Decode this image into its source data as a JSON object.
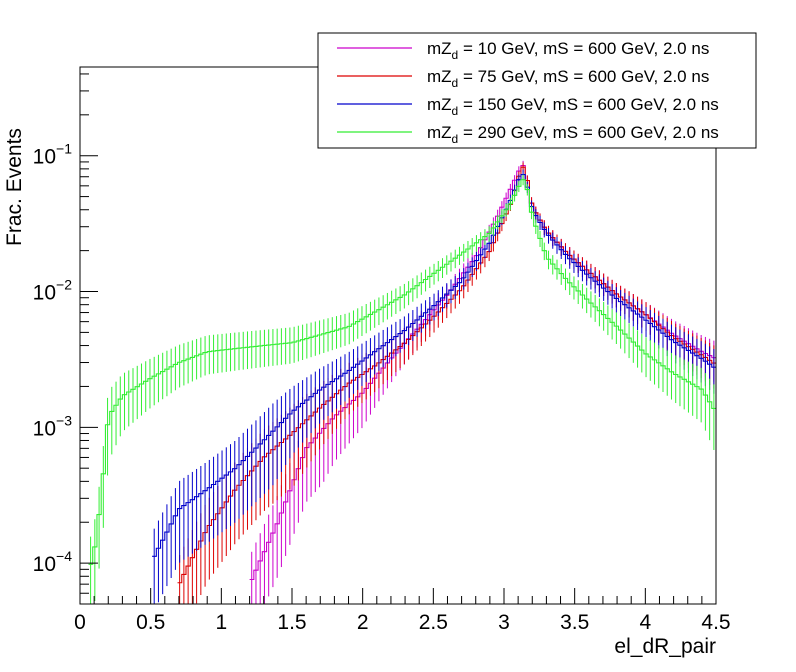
{
  "chart_data": {
    "type": "line",
    "style": "step-histogram-with-error-bars",
    "xlabel": "el_dR_pair",
    "ylabel": "Frac. Events",
    "xlim": [
      0,
      4.5
    ],
    "ylim": [
      5e-05,
      0.45
    ],
    "yscale": "log",
    "bin_width": 0.03,
    "x_ticks": [
      "0",
      "0.5",
      "1",
      "1.5",
      "2",
      "2.5",
      "3",
      "3.5",
      "4",
      "4.5"
    ],
    "y_ticks": [
      {
        "base": "10",
        "exp": "−4",
        "value": 0.0001
      },
      {
        "base": "10",
        "exp": "−3",
        "value": 0.001
      },
      {
        "base": "10",
        "exp": "−2",
        "value": 0.01
      },
      {
        "base": "10",
        "exp": "−1",
        "value": 0.1
      }
    ],
    "grid": false,
    "legend_position": "top-right",
    "series": [
      {
        "legend_main": "mZ",
        "legend_sub": "d",
        "legend_rest": " = 10 GeV, mS = 600 GeV, 2.0 ns",
        "color": "#cc00cc",
        "x": [
          1.2,
          1.4,
          1.6,
          1.8,
          2.0,
          2.2,
          2.4,
          2.6,
          2.8,
          2.95,
          3.05,
          3.1,
          3.13,
          3.16,
          3.2,
          3.3,
          3.45,
          3.6,
          3.8,
          4.0,
          4.2,
          4.4,
          4.5
        ],
        "y": [
          7e-05,
          0.0002,
          0.0007,
          0.0012,
          0.0018,
          0.0032,
          0.0055,
          0.0095,
          0.018,
          0.035,
          0.058,
          0.075,
          0.088,
          0.07,
          0.042,
          0.028,
          0.019,
          0.014,
          0.0095,
          0.0068,
          0.0048,
          0.0036,
          0.0032
        ]
      },
      {
        "legend_main": "mZ",
        "legend_sub": "d",
        "legend_rest": " = 75 GeV, mS = 600 GeV, 2.0 ns",
        "color": "#dd0000",
        "x": [
          0.7,
          0.9,
          1.1,
          1.3,
          1.5,
          1.7,
          1.9,
          2.1,
          2.3,
          2.5,
          2.7,
          2.9,
          3.05,
          3.1,
          3.13,
          3.16,
          3.2,
          3.3,
          3.45,
          3.6,
          3.8,
          4.0,
          4.2,
          4.4,
          4.5
        ],
        "y": [
          7e-05,
          0.00018,
          0.00035,
          0.0006,
          0.0009,
          0.0014,
          0.0021,
          0.0029,
          0.0042,
          0.0065,
          0.0105,
          0.02,
          0.045,
          0.068,
          0.085,
          0.07,
          0.042,
          0.028,
          0.019,
          0.014,
          0.0095,
          0.0068,
          0.0046,
          0.0034,
          0.0029
        ]
      },
      {
        "legend_main": "mZ",
        "legend_sub": "d",
        "legend_rest": " = 150 GeV, mS = 600 GeV, 2.0 ns",
        "color": "#0000cc",
        "x": [
          0.5,
          0.7,
          0.9,
          1.1,
          1.3,
          1.5,
          1.7,
          1.9,
          2.1,
          2.3,
          2.5,
          2.7,
          2.9,
          3.05,
          3.1,
          3.13,
          3.16,
          3.2,
          3.3,
          3.45,
          3.6,
          3.8,
          4.0,
          4.2,
          4.4,
          4.5
        ],
        "y": [
          0.0001,
          0.00025,
          0.00035,
          0.0005,
          0.0008,
          0.0013,
          0.0019,
          0.0026,
          0.0037,
          0.0052,
          0.0078,
          0.012,
          0.023,
          0.048,
          0.065,
          0.075,
          0.062,
          0.04,
          0.027,
          0.018,
          0.013,
          0.0088,
          0.0062,
          0.0043,
          0.0032,
          0.0027
        ]
      },
      {
        "legend_main": "mZ",
        "legend_sub": "d",
        "legend_rest": " = 290 GeV, mS = 600 GeV, 2.0 ns",
        "color": "#33ee33",
        "x": [
          0.05,
          0.1,
          0.15,
          0.2,
          0.3,
          0.5,
          0.7,
          0.9,
          1.1,
          1.3,
          1.5,
          1.7,
          1.9,
          2.1,
          2.3,
          2.5,
          2.7,
          2.9,
          3.05,
          3.1,
          3.13,
          3.16,
          3.2,
          3.3,
          3.45,
          3.6,
          3.8,
          4.0,
          4.2,
          4.4,
          4.5
        ],
        "y": [
          8e-05,
          0.00012,
          0.0003,
          0.0012,
          0.0017,
          0.0023,
          0.003,
          0.0036,
          0.0038,
          0.004,
          0.0042,
          0.0048,
          0.0055,
          0.0072,
          0.0095,
          0.0135,
          0.019,
          0.027,
          0.045,
          0.058,
          0.068,
          0.06,
          0.036,
          0.018,
          0.012,
          0.0085,
          0.0055,
          0.0035,
          0.0025,
          0.0019,
          0.0013
        ]
      }
    ]
  }
}
